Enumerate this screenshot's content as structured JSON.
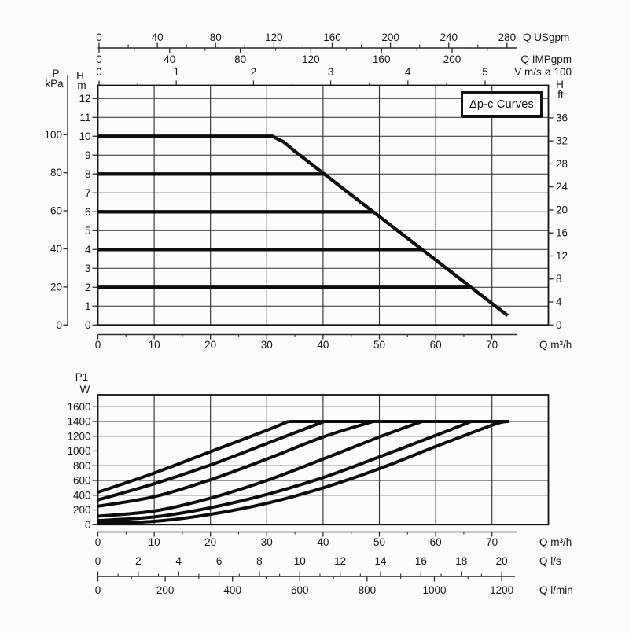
{
  "title_box": {
    "label": "Δp-c Curves"
  },
  "colors": {
    "ink": "#161616",
    "grid": "#2b2b2b",
    "frame": "#121212",
    "curve": "#0c0c0c",
    "background": "#fcfcfc"
  },
  "chart_data": [
    {
      "id": "head-flow-chart",
      "type": "line",
      "title": "Δp-c Curves",
      "xlabel": "Q m³/h",
      "ylabel": "H m",
      "xlim": [
        0,
        80
      ],
      "ylim": [
        0,
        12.7
      ],
      "grid": true,
      "legend": "none",
      "axes": {
        "m3h": {
          "label": "Q m³/h",
          "ticks": [
            0,
            10,
            20,
            30,
            40,
            50,
            60,
            70
          ],
          "minor_step": 5
        },
        "usgpm": {
          "label": "Q USgpm",
          "ticks": [
            0,
            40,
            80,
            120,
            160,
            200,
            240,
            280
          ],
          "minor_step": 20
        },
        "impgpm": {
          "label": "Q IMPgpm",
          "ticks": [
            0,
            40,
            80,
            120,
            160,
            200
          ],
          "minor_step": 20
        },
        "velocity": {
          "label": "V m/s ø 100",
          "ticks": [
            0,
            1,
            2,
            3,
            4,
            5
          ],
          "minor_step": 0.5
        },
        "kpa": {
          "header_top": "P",
          "header_bottom": "kPa",
          "ticks": [
            0,
            20,
            40,
            60,
            80,
            100
          ]
        },
        "m": {
          "header_top": "H",
          "header_bottom": "m",
          "ticks": [
            0,
            1,
            2,
            3,
            4,
            5,
            6,
            7,
            8,
            9,
            10,
            11,
            12
          ]
        },
        "ft": {
          "header_top": "H",
          "header_bottom": "ft",
          "ticks": [
            0,
            4,
            8,
            12,
            16,
            20,
            24,
            28,
            32,
            36
          ]
        }
      },
      "series": [
        {
          "name": "max-head-curve",
          "setpoint_m": 10,
          "points": [
            [
              0,
              10
            ],
            [
              31,
              10
            ],
            [
              33,
              9.7
            ],
            [
              35,
              9.2
            ],
            [
              72.8,
              0.5
            ]
          ]
        },
        {
          "name": "dpc-constant-8m",
          "setpoint_m": 8,
          "points": [
            [
              0,
              8
            ],
            [
              40.2,
              8
            ]
          ]
        },
        {
          "name": "dpc-constant-6m",
          "setpoint_m": 6,
          "points": [
            [
              0,
              6
            ],
            [
              48.9,
              6
            ]
          ]
        },
        {
          "name": "dpc-constant-4m",
          "setpoint_m": 4,
          "points": [
            [
              0,
              4
            ],
            [
              57.6,
              4
            ]
          ]
        },
        {
          "name": "dpc-constant-2m",
          "setpoint_m": 2,
          "points": [
            [
              0,
              2
            ],
            [
              66.3,
              2
            ]
          ]
        }
      ]
    },
    {
      "id": "power-flow-chart",
      "type": "line",
      "title": "P1",
      "xlabel": "Q m³/h",
      "ylabel": "P1 W",
      "xlim": [
        0,
        80
      ],
      "ylim": [
        0,
        1760
      ],
      "grid": true,
      "legend": "none",
      "axes": {
        "w": {
          "header_top": "P1",
          "header_bottom": "W",
          "ticks": [
            0,
            200,
            400,
            600,
            800,
            1000,
            1200,
            1400,
            1600
          ]
        },
        "m3h": {
          "label": "Q m³/h",
          "ticks": [
            0,
            10,
            20,
            30,
            40,
            50,
            60,
            70
          ],
          "minor_step": 5
        },
        "ls": {
          "label": "Q l/s",
          "ticks": [
            0,
            2,
            4,
            6,
            8,
            10,
            12,
            14,
            16,
            18,
            20
          ],
          "minor_step": 1
        },
        "lmin": {
          "label": "Q l/min",
          "ticks": [
            0,
            200,
            400,
            600,
            800,
            1000,
            1200
          ],
          "minor_step": 100
        }
      },
      "series": [
        {
          "name": "p1-max-curve",
          "points": [
            [
              0,
              440
            ],
            [
              10,
              700
            ],
            [
              20,
              990
            ],
            [
              30,
              1280
            ],
            [
              33.8,
              1400
            ]
          ]
        },
        {
          "name": "p1-dpc-8m",
          "points": [
            [
              0,
              335
            ],
            [
              10,
              555
            ],
            [
              20,
              810
            ],
            [
              30,
              1100
            ],
            [
              40.2,
              1400
            ]
          ]
        },
        {
          "name": "p1-dpc-6m",
          "points": [
            [
              0,
              250
            ],
            [
              10,
              380
            ],
            [
              20,
              610
            ],
            [
              30,
              890
            ],
            [
              40,
              1190
            ],
            [
              48.9,
              1400
            ]
          ]
        },
        {
          "name": "p1-dpc-4m",
          "points": [
            [
              0,
              115
            ],
            [
              10,
              185
            ],
            [
              20,
              360
            ],
            [
              30,
              600
            ],
            [
              40,
              890
            ],
            [
              50,
              1190
            ],
            [
              57.6,
              1400
            ]
          ]
        },
        {
          "name": "p1-dpc-2m",
          "points": [
            [
              0,
              55
            ],
            [
              10,
              105
            ],
            [
              20,
              230
            ],
            [
              30,
              410
            ],
            [
              40,
              640
            ],
            [
              50,
              920
            ],
            [
              60,
              1210
            ],
            [
              66.3,
              1400
            ]
          ]
        },
        {
          "name": "p1-min-curve",
          "points": [
            [
              0,
              20
            ],
            [
              10,
              45
            ],
            [
              20,
              140
            ],
            [
              30,
              290
            ],
            [
              40,
              500
            ],
            [
              50,
              760
            ],
            [
              60,
              1060
            ],
            [
              70,
              1350
            ],
            [
              72.5,
              1400
            ]
          ]
        },
        {
          "name": "p1-max-power-limit",
          "points": [
            [
              33.8,
              1400
            ],
            [
              73,
              1400
            ]
          ]
        }
      ]
    }
  ]
}
